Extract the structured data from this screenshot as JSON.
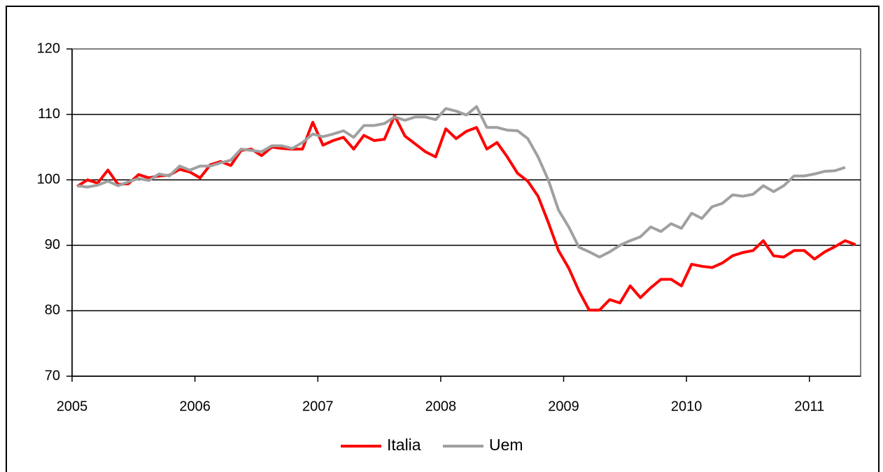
{
  "chart_data": {
    "type": "line",
    "categories": [
      "2005",
      null,
      null,
      null,
      null,
      null,
      null,
      null,
      null,
      null,
      null,
      null,
      "2006",
      null,
      null,
      null,
      null,
      null,
      null,
      null,
      null,
      null,
      null,
      null,
      "2007",
      null,
      null,
      null,
      null,
      null,
      null,
      null,
      null,
      null,
      null,
      null,
      "2008",
      null,
      null,
      null,
      null,
      null,
      null,
      null,
      null,
      null,
      null,
      null,
      "2009",
      null,
      null,
      null,
      null,
      null,
      null,
      null,
      null,
      null,
      null,
      null,
      "2010",
      null,
      null,
      null,
      null,
      null,
      null,
      null,
      null,
      null,
      null,
      null,
      "2011",
      null,
      null,
      null,
      null
    ],
    "series": [
      {
        "name": "Italia",
        "color": "#ff0000",
        "values": [
          99,
          100,
          99.5,
          101.5,
          99.3,
          99.4,
          100.8,
          100.3,
          100.6,
          100.7,
          101.6,
          101.2,
          100.3,
          102.3,
          102.8,
          102.2,
          104.5,
          104.7,
          103.7,
          105,
          104.8,
          104.7,
          104.7,
          108.8,
          105.3,
          106,
          106.5,
          104.7,
          106.8,
          106,
          106.2,
          109.8,
          106.7,
          105.5,
          104.3,
          103.5,
          107.8,
          106.3,
          107.4,
          108,
          104.7,
          105.7,
          103.5,
          101,
          99.8,
          97.5,
          93.5,
          89.2,
          86.5,
          83,
          80.1,
          80.1,
          81.7,
          81.2,
          83.8,
          82,
          83.5,
          84.8,
          84.8,
          83.8,
          87.1,
          86.8,
          86.6,
          87.3,
          88.4,
          88.9,
          89.2,
          90.7,
          88.4,
          88.2,
          89.2,
          89.2,
          87.9,
          89,
          89.8,
          90.7,
          90.1
        ]
      },
      {
        "name": "Uem",
        "color": "#a0a0a0",
        "values": [
          99.1,
          98.9,
          99.2,
          99.8,
          99.1,
          99.7,
          100.2,
          99.9,
          100.9,
          100.6,
          102.1,
          101.5,
          102.1,
          102.1,
          102.6,
          103,
          104.7,
          104.5,
          104.3,
          105.2,
          105.2,
          104.8,
          105.7,
          107,
          106.6,
          107,
          107.5,
          106.5,
          108.3,
          108.3,
          108.6,
          109.6,
          109.1,
          109.6,
          109.6,
          109.2,
          110.9,
          110.5,
          109.9,
          111.2,
          108,
          108,
          107.6,
          107.5,
          106.3,
          103.5,
          100,
          95.4,
          92.8,
          89.7,
          89,
          88.2,
          89,
          90,
          90.7,
          91.3,
          92.8,
          92.1,
          93.3,
          92.6,
          94.9,
          94.1,
          95.9,
          96.4,
          97.7,
          97.5,
          97.8,
          99.1,
          98.2,
          99.1,
          100.6,
          100.6,
          100.9,
          101.3,
          101.4,
          101.9,
          null
        ]
      }
    ],
    "ylim": [
      70,
      120
    ],
    "yticks": [
      70,
      80,
      90,
      100,
      110,
      120
    ],
    "grid": true,
    "legend": "bottom"
  }
}
